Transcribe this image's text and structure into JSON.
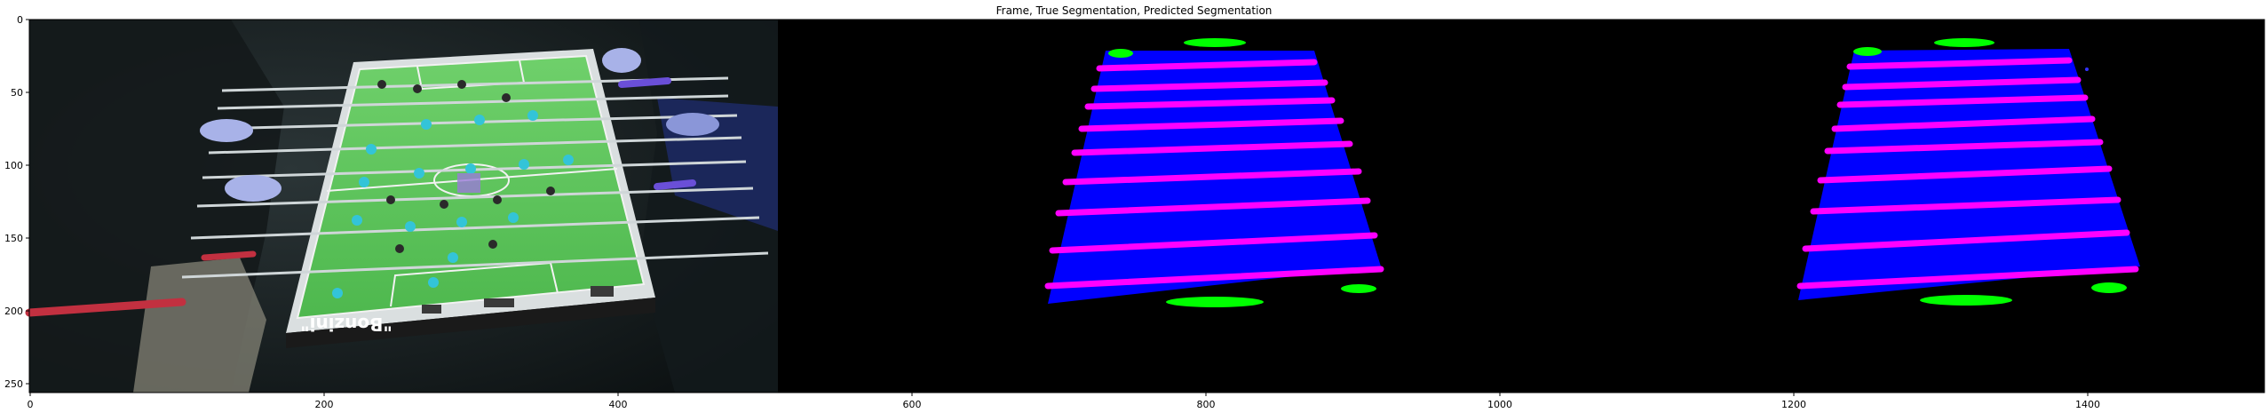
{
  "figure": {
    "title": "Frame, True Segmentation, Predicted Segmentation"
  },
  "axes": {
    "x_ticks": [
      "0",
      "200",
      "400",
      "600",
      "800",
      "1000",
      "1200",
      "1400"
    ],
    "y_ticks": [
      "0",
      "50",
      "100",
      "150",
      "200",
      "250"
    ]
  },
  "frame": {
    "logo_text": "\"Bonzini\""
  },
  "colors": {
    "table": "#0000ff",
    "rods": "#ff00ff",
    "goals": "#00ff00",
    "background": "#000000"
  }
}
